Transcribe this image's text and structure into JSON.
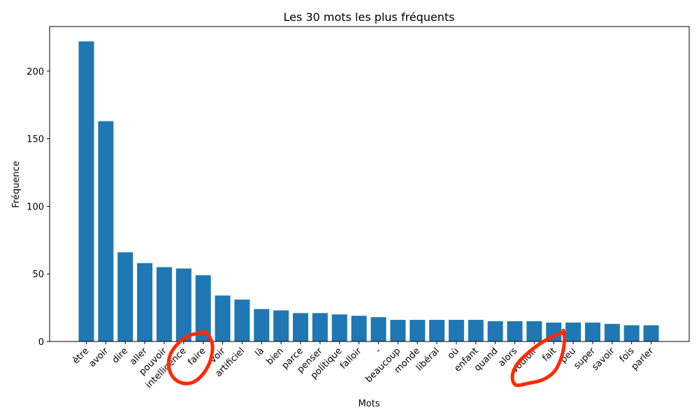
{
  "chart_data": {
    "type": "bar",
    "title": "Les 30 mots les plus fréquents",
    "xlabel": "Mots",
    "ylabel": "Fréquence",
    "ylim": [
      0,
      233
    ],
    "yticks": [
      0,
      50,
      100,
      150,
      200
    ],
    "grid": false,
    "bar_color": "#1f77b4",
    "annotation_color": "#ff2a00",
    "categories": [
      "être",
      "avoir",
      "dire",
      "aller",
      "pouvoir",
      "intelligence",
      "faire",
      "voir",
      "artificiel",
      "là",
      "bien",
      "parce",
      "penser",
      "politique",
      "falloir",
      "-",
      "beaucoup",
      "monde",
      "libéral",
      "où",
      "enfant",
      "quand",
      "alors",
      "vouloir",
      "fait",
      "peu",
      "super",
      "savoir",
      "fois",
      "parler"
    ],
    "values": [
      222,
      163,
      66,
      58,
      55,
      54,
      49,
      34,
      31,
      24,
      23,
      21,
      21,
      20,
      19,
      18,
      16,
      16,
      16,
      16,
      16,
      15,
      15,
      15,
      14,
      14,
      14,
      13,
      12,
      12
    ]
  }
}
